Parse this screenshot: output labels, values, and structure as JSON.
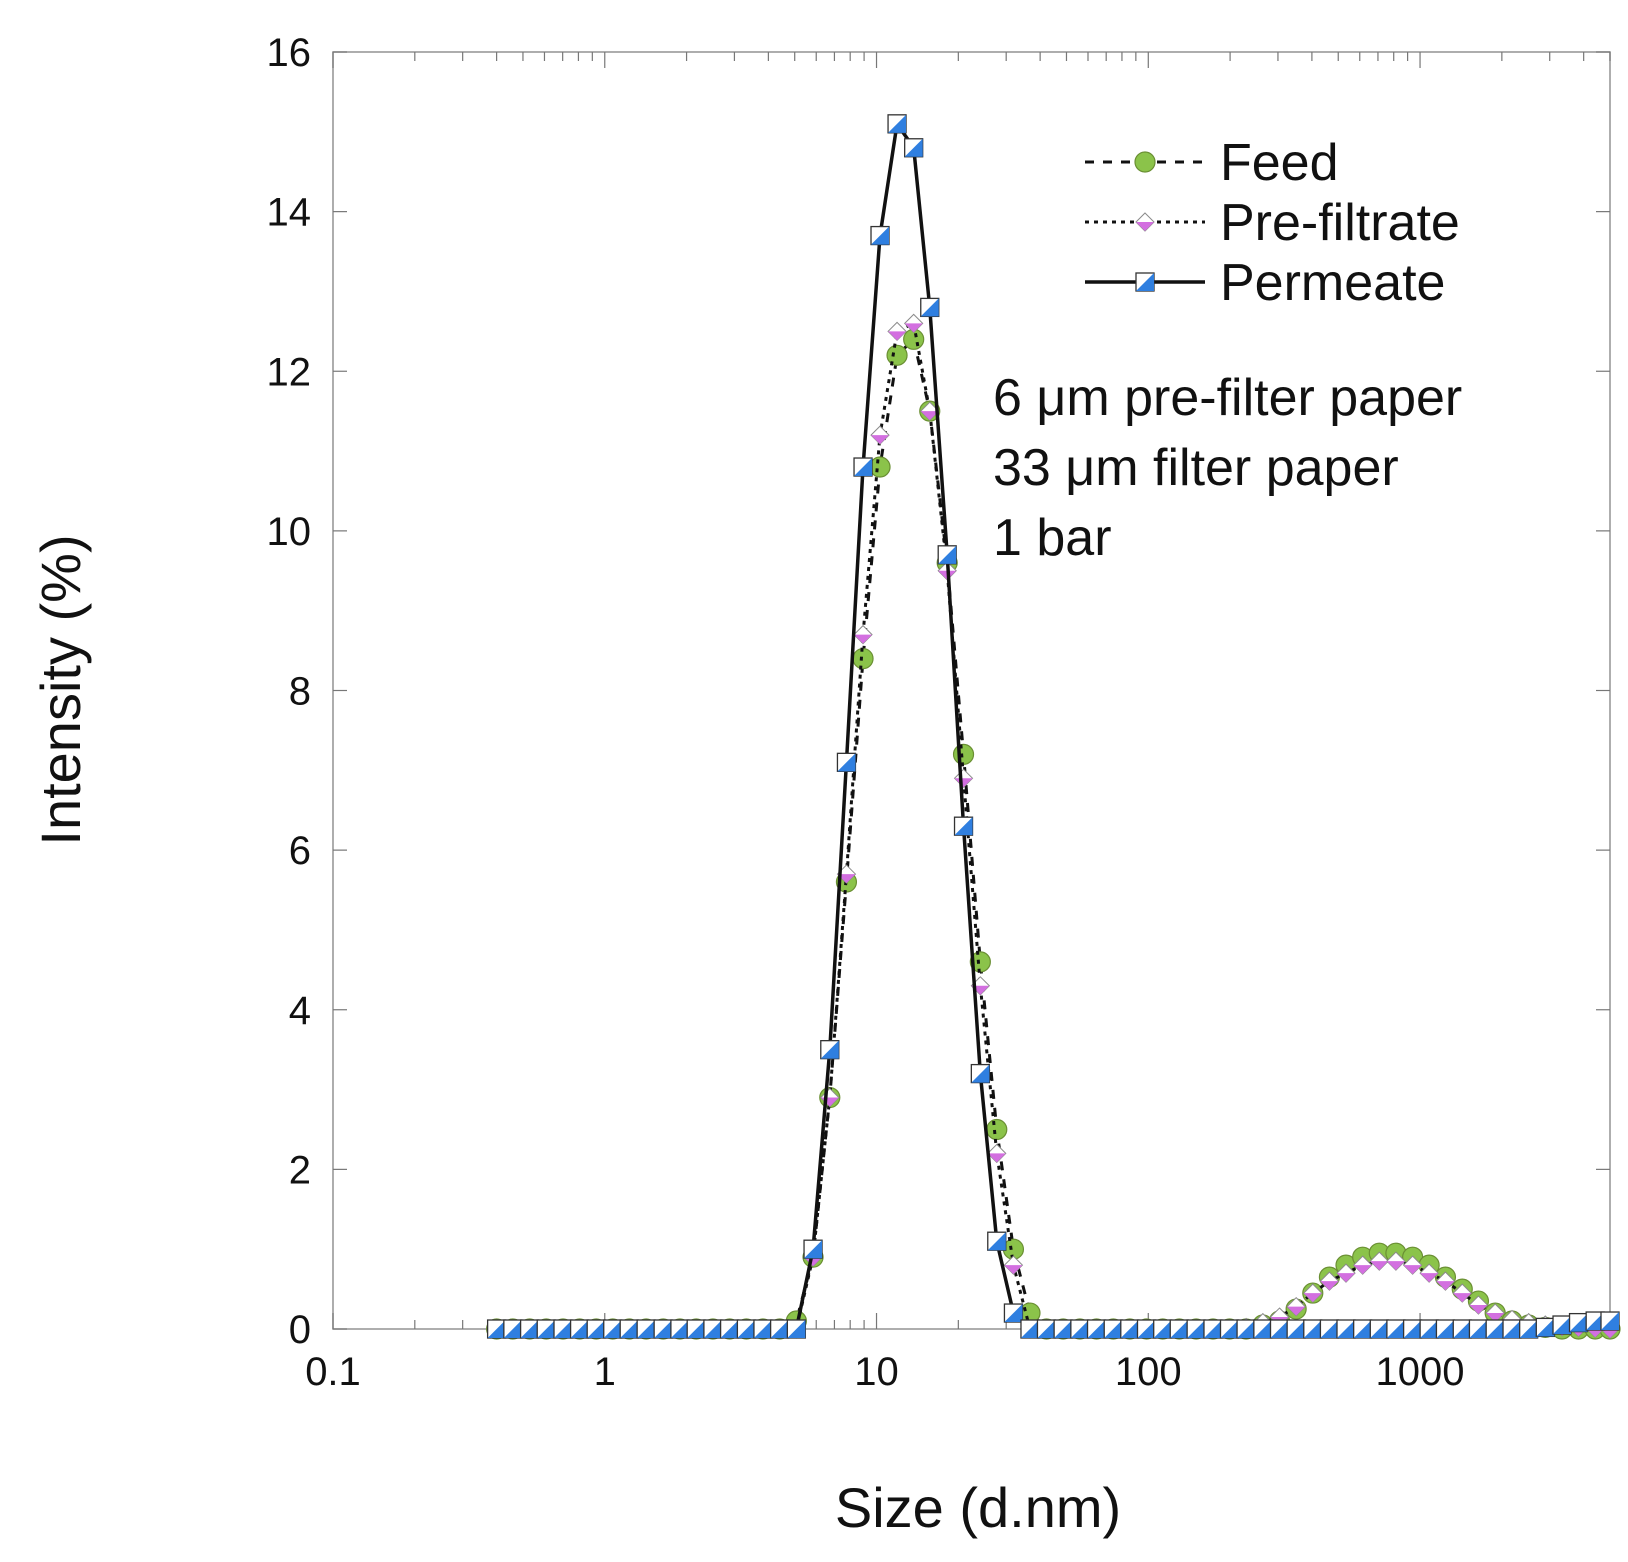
{
  "chart_data": {
    "type": "line",
    "title": "",
    "xlabel": "Size (d.nm)",
    "ylabel": "Intensity (%)",
    "xscale": "log",
    "xlim": [
      0.1,
      5000
    ],
    "ylim": [
      0,
      16
    ],
    "xticks": [
      0.1,
      1,
      10,
      100,
      1000
    ],
    "xtick_labels": [
      "0.1",
      "1",
      "10",
      "100",
      "1000"
    ],
    "yticks": [
      0,
      2,
      4,
      6,
      8,
      10,
      12,
      14,
      16
    ],
    "ytick_labels": [
      "0",
      "2",
      "4",
      "6",
      "8",
      "10",
      "12",
      "14",
      "16"
    ],
    "legend_position": "top-right",
    "annotations": [
      "6 μm pre-filter paper",
      "33 μm filter paper",
      "1 bar"
    ],
    "x": [
      0.4,
      0.459,
      0.529,
      0.609,
      0.702,
      0.808,
      0.93,
      1.07,
      1.23,
      1.42,
      1.64,
      1.89,
      2.17,
      2.5,
      2.88,
      3.32,
      3.82,
      4.4,
      5.07,
      5.84,
      6.73,
      7.75,
      8.92,
      10.3,
      11.9,
      13.7,
      15.7,
      18.2,
      20.9,
      24.1,
      27.7,
      31.9,
      36.7,
      42.2,
      48.6,
      56.0,
      64.5,
      74.3,
      85.5,
      98.5,
      113,
      130,
      150,
      173,
      199,
      229,
      264,
      304,
      350,
      403,
      464,
      534,
      615,
      708,
      815,
      939,
      1080,
      1240,
      1430,
      1640,
      1890,
      2180,
      2510,
      2890,
      3330,
      3830,
      4410,
      5000
    ],
    "series": [
      {
        "name": "Feed",
        "line_style": "dashed",
        "marker": "circle",
        "marker_color": "#8bc34a",
        "values": [
          0,
          0,
          0,
          0,
          0,
          0,
          0,
          0,
          0,
          0,
          0,
          0,
          0,
          0,
          0,
          0,
          0,
          0,
          0.1,
          0.9,
          2.9,
          5.6,
          8.4,
          10.8,
          12.2,
          12.4,
          11.5,
          9.6,
          7.2,
          4.6,
          2.5,
          1.0,
          0.2,
          0,
          0,
          0,
          0,
          0,
          0,
          0,
          0,
          0,
          0,
          0,
          0,
          0,
          0.05,
          0.1,
          0.25,
          0.45,
          0.65,
          0.8,
          0.9,
          0.95,
          0.95,
          0.9,
          0.8,
          0.65,
          0.5,
          0.35,
          0.2,
          0.1,
          0.05,
          0.02,
          0,
          0,
          0,
          0
        ]
      },
      {
        "name": "Pre-filtrate",
        "line_style": "dotted",
        "marker": "diamond",
        "marker_color": "#d36fe0",
        "values": [
          0,
          0,
          0,
          0,
          0,
          0,
          0,
          0,
          0,
          0,
          0,
          0,
          0,
          0,
          0,
          0,
          0,
          0,
          0,
          0.9,
          2.9,
          5.7,
          8.7,
          11.2,
          12.5,
          12.6,
          11.5,
          9.5,
          6.9,
          4.3,
          2.2,
          0.8,
          0,
          0,
          0,
          0,
          0,
          0,
          0,
          0,
          0,
          0,
          0,
          0,
          0,
          0.02,
          0.08,
          0.15,
          0.28,
          0.45,
          0.6,
          0.7,
          0.8,
          0.85,
          0.85,
          0.8,
          0.7,
          0.6,
          0.45,
          0.3,
          0.2,
          0.12,
          0.08,
          0.05,
          0.03,
          0.02,
          0.01,
          0
        ]
      },
      {
        "name": "Permeate",
        "line_style": "solid",
        "marker": "square-half",
        "marker_color": "#2f7fe0",
        "values": [
          0,
          0,
          0,
          0,
          0,
          0,
          0,
          0,
          0,
          0,
          0,
          0,
          0,
          0,
          0,
          0,
          0,
          0,
          0,
          1.0,
          3.5,
          7.1,
          10.8,
          13.7,
          15.1,
          14.8,
          12.8,
          9.7,
          6.3,
          3.2,
          1.1,
          0.2,
          0,
          0,
          0,
          0,
          0,
          0,
          0,
          0,
          0,
          0,
          0,
          0,
          0,
          0,
          0,
          0,
          0,
          0,
          0,
          0,
          0,
          0,
          0,
          0,
          0,
          0,
          0,
          0,
          0,
          0,
          0,
          0.02,
          0.05,
          0.08,
          0.1,
          0.1
        ]
      }
    ]
  }
}
